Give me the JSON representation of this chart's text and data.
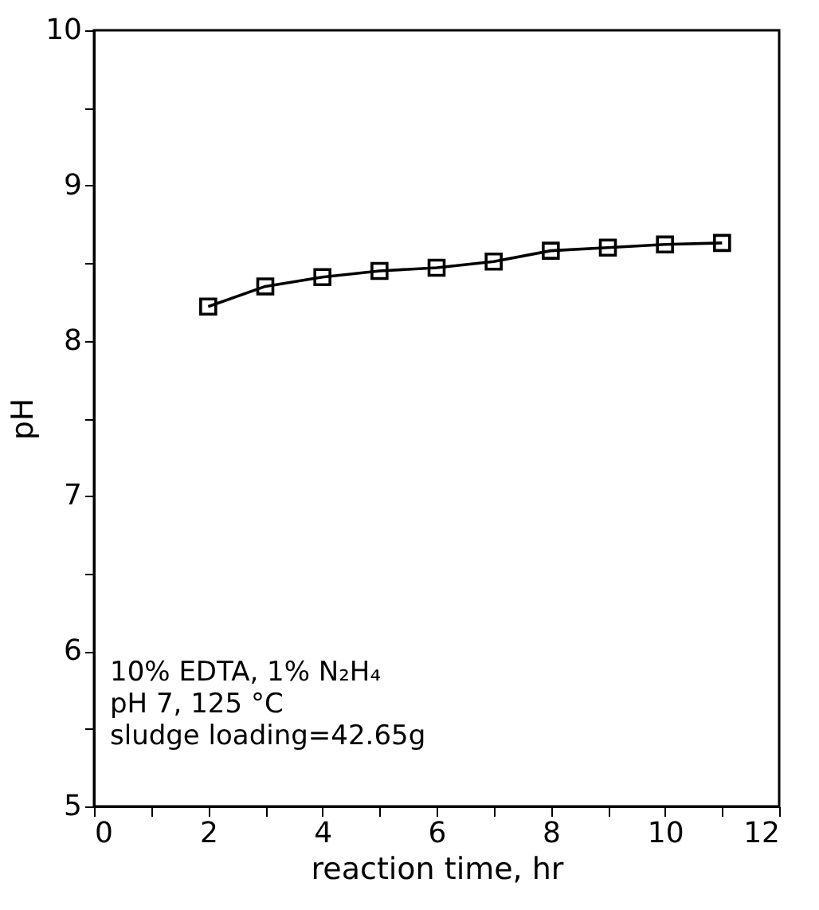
{
  "chart_data": {
    "type": "line",
    "xlabel": "reaction time, hr",
    "ylabel": "pH",
    "x": [
      2,
      3,
      4,
      5,
      6,
      7,
      8,
      9,
      10,
      11
    ],
    "series": [
      {
        "color": "#000000",
        "values": [
          8.22,
          8.35,
          8.41,
          8.45,
          8.47,
          8.51,
          8.58,
          8.6,
          8.62,
          8.63
        ]
      }
    ],
    "xlim": [
      0,
      12
    ],
    "ylim": [
      5,
      10
    ],
    "xticks": [
      0,
      {
        "value": 1,
        "label": null
      },
      2,
      {
        "value": 3,
        "label": null
      },
      4,
      {
        "value": 5,
        "label": null
      },
      6,
      {
        "value": 7,
        "label": null
      },
      8,
      {
        "value": 9,
        "label": null
      },
      10,
      {
        "value": 11,
        "label": null
      },
      12
    ],
    "yticks": [
      5,
      {
        "value": 5.5,
        "label": null
      },
      6,
      {
        "value": 6.5,
        "label": null
      },
      7,
      {
        "value": 7.5,
        "label": null
      },
      8,
      {
        "value": 8.5,
        "label": null
      },
      9,
      {
        "value": 9.5,
        "label": null
      },
      10
    ],
    "marker": "square",
    "line_style": "solid",
    "grid": false,
    "annotations": [
      "10% EDTA, 1% N₂H₄",
      "pH 7, 125 °C",
      "sludge loading=42.65g"
    ]
  }
}
